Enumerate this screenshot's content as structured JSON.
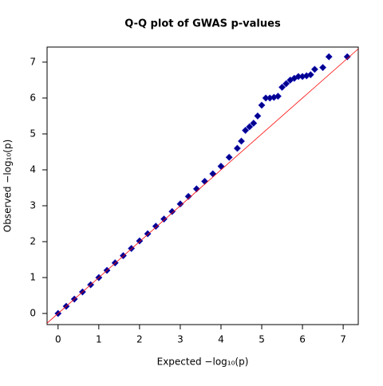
{
  "chart_data": {
    "type": "scatter",
    "title": "Q-Q plot of GWAS p-values",
    "x_label": "Expected  −log₁₀(p)",
    "y_label": "Observed  −log₁₀(p)",
    "x": [
      0,
      0.2,
      0.4,
      0.6,
      0.8,
      1.0,
      1.2,
      1.4,
      1.6,
      1.8,
      2.0,
      2.2,
      2.4,
      2.6,
      2.8,
      3.0,
      3.2,
      3.4,
      3.6,
      3.8,
      4.0,
      4.2,
      4.4,
      4.5,
      4.6,
      4.7,
      4.8,
      4.9,
      5.0,
      5.1,
      5.2,
      5.3,
      5.4,
      5.5,
      5.6,
      5.7,
      5.8,
      5.9,
      6.0,
      6.1,
      6.2,
      6.3,
      6.5,
      6.65,
      7.1
    ],
    "values": [
      0,
      0.2,
      0.4,
      0.6,
      0.8,
      1.0,
      1.2,
      1.41,
      1.61,
      1.81,
      2.02,
      2.22,
      2.43,
      2.63,
      2.84,
      3.05,
      3.26,
      3.47,
      3.68,
      3.89,
      4.1,
      4.35,
      4.6,
      4.8,
      5.1,
      5.2,
      5.3,
      5.5,
      5.8,
      6.0,
      6.0,
      6.02,
      6.05,
      6.3,
      6.4,
      6.5,
      6.55,
      6.6,
      6.6,
      6.62,
      6.65,
      6.8,
      6.85,
      7.15,
      7.15
    ],
    "color": "#00008b",
    "reference_line_color": "#ff0000",
    "xlim": [
      -0.27,
      7.37
    ],
    "xticks": [
      0,
      1,
      2,
      3,
      4,
      5,
      6,
      7
    ],
    "ylim": [
      -0.31,
      7.42
    ],
    "yticks": [
      0,
      1,
      2,
      3,
      4,
      5,
      6,
      7
    ]
  }
}
